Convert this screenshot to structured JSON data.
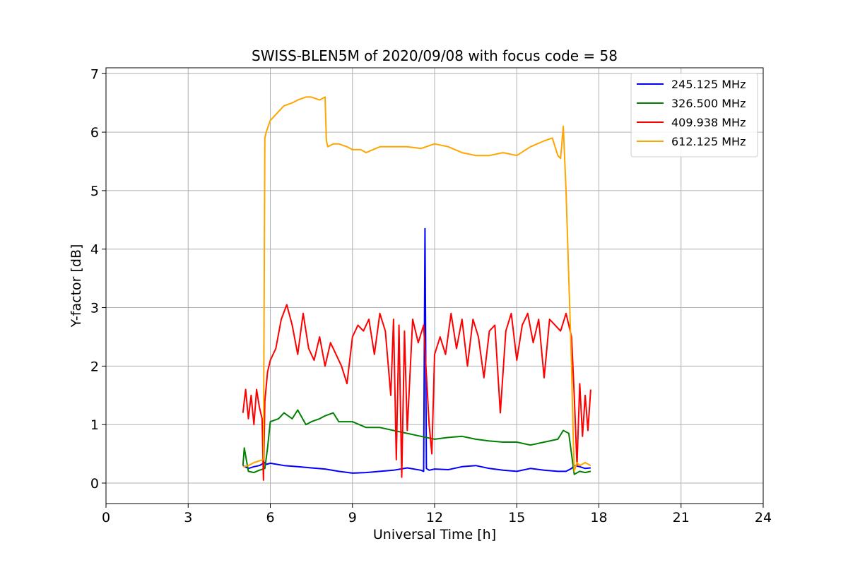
{
  "chart_data": {
    "type": "line",
    "title": "SWISS-BLEN5M of 2020/09/08 with focus code = 58",
    "xlabel": "Universal Time [h]",
    "ylabel": "Y-factor [dB]",
    "xlim": [
      0,
      24
    ],
    "ylim": [
      -0.35,
      7.1
    ],
    "xticks": [
      0,
      3,
      6,
      9,
      12,
      15,
      18,
      21,
      24
    ],
    "yticks": [
      0,
      1,
      2,
      3,
      4,
      5,
      6,
      7
    ],
    "grid": true,
    "legend_position": "top-right",
    "series": [
      {
        "name": "245.125 MHz",
        "color": "#0000ff",
        "x": [
          5.0,
          5.2,
          5.4,
          5.6,
          5.8,
          5.85,
          6.0,
          6.5,
          7.0,
          7.5,
          8.0,
          8.5,
          9.0,
          9.5,
          10.0,
          10.5,
          11.0,
          11.5,
          11.6,
          11.65,
          11.7,
          11.8,
          12.0,
          12.5,
          13.0,
          13.5,
          14.0,
          14.5,
          15.0,
          15.5,
          16.0,
          16.5,
          16.8,
          17.0,
          17.1,
          17.3,
          17.5,
          17.7
        ],
        "y": [
          0.3,
          0.25,
          0.28,
          0.3,
          0.35,
          0.32,
          0.34,
          0.3,
          0.28,
          0.26,
          0.24,
          0.2,
          0.17,
          0.18,
          0.2,
          0.22,
          0.26,
          0.22,
          0.2,
          4.35,
          0.25,
          0.22,
          0.24,
          0.23,
          0.28,
          0.3,
          0.25,
          0.22,
          0.2,
          0.25,
          0.22,
          0.2,
          0.2,
          0.25,
          0.3,
          0.28,
          0.25,
          0.26
        ]
      },
      {
        "name": "326.500 MHz",
        "color": "#008000",
        "x": [
          5.0,
          5.05,
          5.2,
          5.4,
          5.6,
          5.8,
          5.9,
          6.0,
          6.3,
          6.5,
          6.8,
          7.0,
          7.3,
          7.5,
          7.8,
          8.0,
          8.3,
          8.5,
          9.0,
          9.5,
          10.0,
          10.5,
          11.0,
          11.5,
          12.0,
          12.5,
          13.0,
          13.5,
          14.0,
          14.5,
          15.0,
          15.5,
          16.0,
          16.5,
          16.7,
          16.9,
          17.1,
          17.3,
          17.5,
          17.7
        ],
        "y": [
          0.3,
          0.6,
          0.2,
          0.18,
          0.22,
          0.25,
          0.6,
          1.05,
          1.1,
          1.2,
          1.1,
          1.25,
          1.0,
          1.05,
          1.1,
          1.15,
          1.2,
          1.05,
          1.05,
          0.95,
          0.95,
          0.9,
          0.85,
          0.8,
          0.75,
          0.78,
          0.8,
          0.75,
          0.72,
          0.7,
          0.7,
          0.65,
          0.7,
          0.75,
          0.9,
          0.85,
          0.15,
          0.2,
          0.18,
          0.2
        ]
      },
      {
        "name": "409.938 MHz",
        "color": "#ff0000",
        "x": [
          5.0,
          5.1,
          5.2,
          5.3,
          5.4,
          5.5,
          5.6,
          5.7,
          5.75,
          5.8,
          5.9,
          6.0,
          6.2,
          6.4,
          6.6,
          6.8,
          7.0,
          7.2,
          7.4,
          7.6,
          7.8,
          8.0,
          8.2,
          8.4,
          8.6,
          8.8,
          9.0,
          9.2,
          9.4,
          9.6,
          9.8,
          10.0,
          10.2,
          10.4,
          10.5,
          10.6,
          10.7,
          10.8,
          10.9,
          11.0,
          11.2,
          11.4,
          11.6,
          11.8,
          11.9,
          12.0,
          12.2,
          12.4,
          12.6,
          12.8,
          13.0,
          13.2,
          13.4,
          13.6,
          13.8,
          14.0,
          14.2,
          14.4,
          14.6,
          14.8,
          15.0,
          15.2,
          15.4,
          15.6,
          15.8,
          16.0,
          16.2,
          16.4,
          16.6,
          16.8,
          17.0,
          17.1,
          17.2,
          17.3,
          17.4,
          17.5,
          17.6,
          17.7
        ],
        "y": [
          1.2,
          1.6,
          1.1,
          1.5,
          1.0,
          1.6,
          1.3,
          1.1,
          0.05,
          1.4,
          1.9,
          2.1,
          2.3,
          2.8,
          3.05,
          2.7,
          2.2,
          2.9,
          2.3,
          2.1,
          2.5,
          2.0,
          2.4,
          2.2,
          2.0,
          1.7,
          2.5,
          2.7,
          2.6,
          2.8,
          2.2,
          2.9,
          2.6,
          1.5,
          2.8,
          0.4,
          2.7,
          0.1,
          2.6,
          0.9,
          2.8,
          2.4,
          2.7,
          1.0,
          0.5,
          2.2,
          2.5,
          2.2,
          2.9,
          2.3,
          2.8,
          2.0,
          2.8,
          2.5,
          1.8,
          2.6,
          2.7,
          1.2,
          2.6,
          2.9,
          2.1,
          2.7,
          2.9,
          2.4,
          2.8,
          1.8,
          2.8,
          2.7,
          2.6,
          2.9,
          2.5,
          1.5,
          0.3,
          1.7,
          0.8,
          1.5,
          0.9,
          1.6
        ]
      },
      {
        "name": "612.125 MHz",
        "color": "#ffa500",
        "x": [
          5.0,
          5.2,
          5.4,
          5.6,
          5.75,
          5.8,
          5.85,
          6.0,
          6.1,
          6.3,
          6.5,
          6.8,
          7.0,
          7.3,
          7.5,
          7.8,
          8.0,
          8.05,
          8.1,
          8.3,
          8.5,
          8.8,
          9.0,
          9.3,
          9.5,
          10.0,
          10.5,
          11.0,
          11.5,
          12.0,
          12.5,
          13.0,
          13.5,
          14.0,
          14.5,
          15.0,
          15.5,
          16.0,
          16.3,
          16.5,
          16.6,
          16.7,
          16.8,
          16.9,
          17.0,
          17.05,
          17.1,
          17.2,
          17.3,
          17.5,
          17.7
        ],
        "y": [
          0.28,
          0.3,
          0.35,
          0.38,
          0.4,
          5.9,
          6.0,
          6.2,
          6.25,
          6.35,
          6.45,
          6.5,
          6.55,
          6.6,
          6.6,
          6.55,
          6.6,
          5.85,
          5.75,
          5.8,
          5.8,
          5.75,
          5.7,
          5.7,
          5.65,
          5.75,
          5.75,
          5.75,
          5.72,
          5.8,
          5.75,
          5.65,
          5.6,
          5.6,
          5.65,
          5.6,
          5.75,
          5.85,
          5.9,
          5.6,
          5.55,
          6.1,
          5.0,
          3.5,
          2.0,
          1.0,
          0.2,
          0.35,
          0.3,
          0.35,
          0.3
        ]
      }
    ]
  }
}
